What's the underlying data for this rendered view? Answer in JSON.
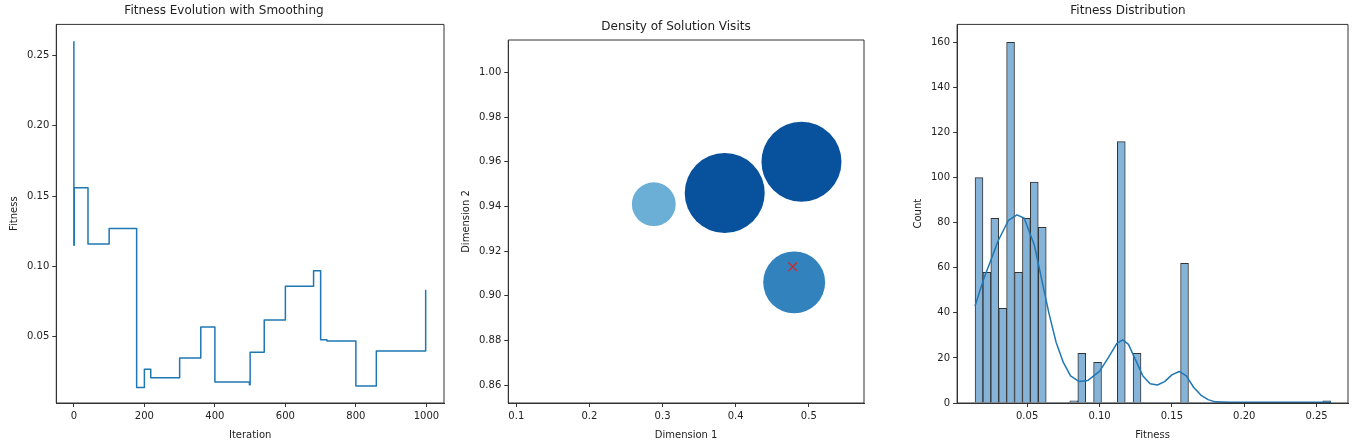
{
  "chart_data": [
    {
      "type": "step",
      "title": "Fitness Evolution with Smoothing",
      "xlabel": "Iteration",
      "ylabel": "Fitness",
      "x": [
        0,
        1,
        40,
        100,
        178,
        200,
        218,
        300,
        360,
        400,
        498,
        500,
        540,
        600,
        680,
        700,
        718,
        800,
        858,
        900,
        998,
        1000
      ],
      "values": [
        0.26,
        0.115,
        0.156,
        0.116,
        0.127,
        0.014,
        0.027,
        0.021,
        0.035,
        0.057,
        0.018,
        0.016,
        0.039,
        0.062,
        0.086,
        0.097,
        0.048,
        0.047,
        0.015,
        0.04,
        0.04,
        0.083
      ],
      "color": "#1f77b4",
      "xlim": [
        -50,
        1050
      ],
      "xticks": [
        0,
        200,
        400,
        600,
        800,
        1000
      ],
      "ylim": [
        0.003,
        0.272
      ],
      "yticks": [
        {
          "value": 0.05,
          "label": "0.05"
        },
        {
          "value": 0.1,
          "label": "0.10"
        },
        {
          "value": 0.15,
          "label": "0.15"
        },
        {
          "value": 0.2,
          "label": "0.20"
        },
        {
          "value": 0.25,
          "label": "0.25"
        }
      ]
    },
    {
      "type": "bubble",
      "title": "Density of Solution Visits",
      "xlabel": "Dimension 1",
      "ylabel": "Dimension 2",
      "series": [
        {
          "type": "bubble",
          "x": [
            0.288,
            0.385,
            0.49,
            0.48
          ],
          "values": [
            0.941,
            0.946,
            0.96,
            0.906
          ],
          "sizes": [
            0.3,
            1,
            1,
            0.6
          ],
          "colors": [
            "#6baed6",
            "#08519c",
            "#08519c",
            "#3182bd"
          ]
        },
        {
          "type": "scatter",
          "x": [
            0.478
          ],
          "values": [
            0.913
          ],
          "color": "#d62728",
          "marker": "cross"
        }
      ],
      "xlim": [
        0.089,
        0.5755
      ],
      "xticks": [
        0.1,
        0.2,
        0.3,
        0.4,
        0.5
      ],
      "ylim": [
        0.852,
        1.0145
      ],
      "yticks": [
        {
          "value": 0.86,
          "label": "0.86"
        },
        {
          "value": 0.88,
          "label": "0.88"
        },
        {
          "value": 0.9,
          "label": "0.90"
        },
        {
          "value": 0.92,
          "label": "0.92"
        },
        {
          "value": 0.94,
          "label": "0.94"
        },
        {
          "value": 0.96,
          "label": "0.96"
        },
        {
          "value": 0.98,
          "label": "0.98"
        },
        {
          "value": 1.0,
          "label": "1.00"
        }
      ]
    },
    {
      "type": "histogram",
      "title": "Fitness Distribution",
      "xlabel": "Fitness",
      "ylabel": "Count",
      "bins": [
        0.014,
        0.0195,
        0.0249,
        0.0304,
        0.0358,
        0.0413,
        0.0468,
        0.0522,
        0.0577,
        0.0632,
        0.0686,
        0.0741,
        0.0795,
        0.085,
        0.0905,
        0.0959,
        0.1014,
        0.1069,
        0.1123,
        0.1178,
        0.1232,
        0.1287,
        0.1342,
        0.1396,
        0.1451,
        0.1506,
        0.156,
        0.1615,
        0.1669,
        0.1724,
        0.1779,
        0.1833,
        0.1888,
        0.1943,
        0.1997,
        0.2052,
        0.2106,
        0.2161,
        0.2216,
        0.227,
        0.2325,
        0.238,
        0.2434,
        0.2489,
        0.2543,
        0.2598
      ],
      "series": [
        {
          "type": "histogram",
          "color": "#86b4d9",
          "values": [
            100,
            58,
            82,
            42,
            160,
            58,
            82,
            98,
            78,
            0,
            0,
            0,
            1,
            22,
            0,
            18,
            0,
            0,
            116,
            0,
            22,
            0,
            0,
            0,
            0,
            0,
            62,
            0,
            0,
            0,
            0,
            0,
            0,
            0,
            0,
            0,
            0,
            0,
            0,
            0,
            0,
            0,
            0,
            0,
            1
          ]
        },
        {
          "type": "line",
          "color": "#1f77b4",
          "x": [
            0.014,
            0.02,
            0.03,
            0.037,
            0.043,
            0.048,
            0.055,
            0.06,
            0.065,
            0.07,
            0.075,
            0.08,
            0.086,
            0.092,
            0.1,
            0.106,
            0.112,
            0.116,
            0.12,
            0.125,
            0.13,
            0.135,
            0.14,
            0.145,
            0.15,
            0.155,
            0.16,
            0.165,
            0.17,
            0.175,
            0.18,
            0.19,
            0.2,
            0.26
          ],
          "values": [
            43,
            55,
            72,
            81,
            83.5,
            82,
            70,
            55,
            40,
            27,
            18,
            12,
            9.5,
            10,
            14,
            20,
            26.5,
            28,
            26,
            19,
            12,
            8.5,
            8,
            9.5,
            12.5,
            14,
            12,
            7,
            3.5,
            1.5,
            0.5,
            0.3,
            0.3,
            0.3
          ]
        }
      ],
      "xlim": [
        0.0016,
        0.2717
      ],
      "xticks": [
        {
          "value": 0.05,
          "label": "0.05"
        },
        {
          "value": 0.1,
          "label": "0.10"
        },
        {
          "value": 0.15,
          "label": "0.15"
        },
        {
          "value": 0.2,
          "label": "0.20"
        },
        {
          "value": 0.25,
          "label": "0.25"
        }
      ],
      "ylim": [
        0,
        168
      ],
      "yticks": [
        0,
        20,
        40,
        60,
        80,
        100,
        120,
        140,
        160
      ]
    }
  ]
}
